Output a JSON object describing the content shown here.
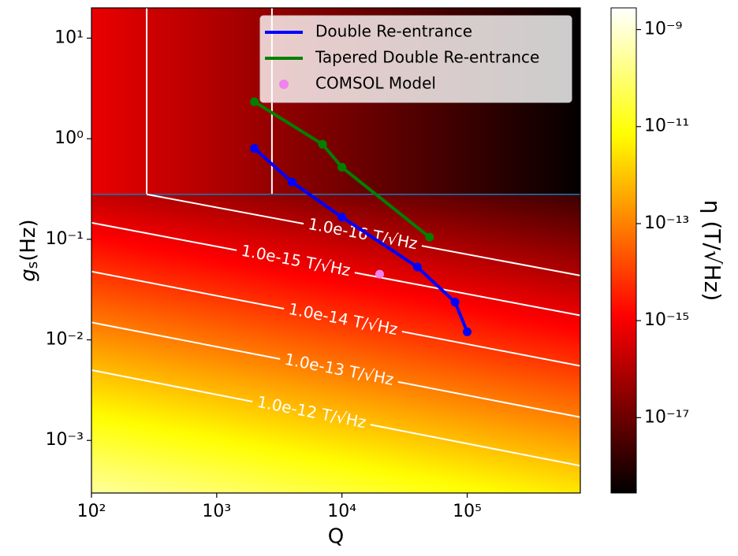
{
  "chart_data": {
    "type": "line",
    "x_label": "Q",
    "y_label": "gs(Hz)",
    "xscale": "log",
    "yscale": "log",
    "xlim": [
      100,
      800000
    ],
    "ylim": [
      0.0003,
      20
    ],
    "xticks": [
      {
        "value": 100,
        "label": "10²"
      },
      {
        "value": 1000,
        "label": "10³"
      },
      {
        "value": 10000,
        "label": "10⁴"
      },
      {
        "value": 100000,
        "label": "10⁵"
      }
    ],
    "yticks": [
      {
        "value": 0.001,
        "label": "10⁻³"
      },
      {
        "value": 0.01,
        "label": "10⁻²"
      },
      {
        "value": 0.1,
        "label": "10⁻¹"
      },
      {
        "value": 1,
        "label": "10⁰"
      },
      {
        "value": 10,
        "label": "10¹"
      }
    ],
    "series": [
      {
        "name": "Double Re-entrance",
        "color": "#0000ff",
        "style": "line",
        "x": [
          2000,
          4000,
          10000,
          40000,
          80000,
          100000
        ],
        "values": [
          0.8,
          0.37,
          0.166,
          0.053,
          0.0237,
          0.012
        ]
      },
      {
        "name": "Tapered Double Re-entrance",
        "color": "#008000",
        "style": "line",
        "x": [
          2000,
          7000,
          10000,
          50000
        ],
        "values": [
          2.33,
          0.88,
          0.52,
          0.105
        ]
      },
      {
        "name": "COMSOL Model",
        "color": "#ee82ee",
        "style": "scatter",
        "x": [
          20000
        ],
        "values": [
          0.045
        ]
      }
    ],
    "legend": "upper right",
    "hline": {
      "y": 0.28,
      "color": "#1f77b4"
    },
    "vlines": {
      "x": [
        276,
        2760
      ],
      "ymin": 0.28,
      "color": "#ffffff"
    },
    "contours": [
      {
        "label": "1.0e-16 T/√Hz",
        "x": [
          276,
          800000
        ],
        "y": [
          0.28,
          0.0436
        ]
      },
      {
        "label": "1.0e-15 T/√Hz",
        "x": [
          100,
          800000
        ],
        "y": [
          0.146,
          0.0175
        ]
      },
      {
        "label": "1.0e-14 T/√Hz",
        "x": [
          100,
          800000
        ],
        "y": [
          0.0478,
          0.0055
        ]
      },
      {
        "label": "1.0e-13 T/√Hz",
        "x": [
          100,
          800000
        ],
        "y": [
          0.0149,
          0.0017
        ]
      },
      {
        "label": "1.0e-12 T/√Hz",
        "x": [
          100,
          800000
        ],
        "y": [
          0.005,
          0.00056
        ]
      }
    ],
    "colorbar": {
      "label": "η (T/√Hz)",
      "cmap": "hot",
      "scale": "log",
      "lim": [
        2.8e-19,
        2.8e-09
      ],
      "ticks": [
        {
          "value": 1e-17,
          "label": "10⁻¹⁷"
        },
        {
          "value": 1e-15,
          "label": "10⁻¹⁵"
        },
        {
          "value": 1e-13,
          "label": "10⁻¹³"
        },
        {
          "value": 1e-11,
          "label": "10⁻¹¹"
        },
        {
          "value": 1e-09,
          "label": "10⁻⁹"
        }
      ]
    }
  }
}
